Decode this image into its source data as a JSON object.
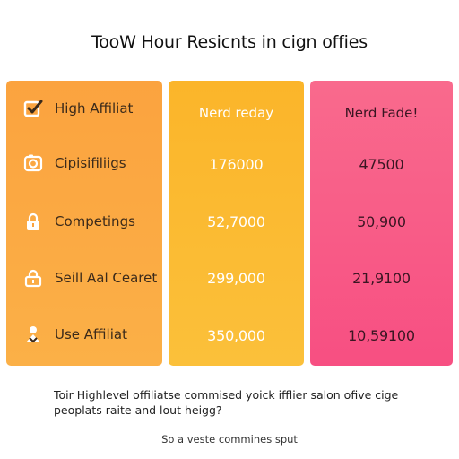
{
  "title": "TooW Hour Resicnts in cign offies",
  "features_panel": {
    "items": [
      {
        "icon": "checkmark-icon",
        "label": "High Affiliat"
      },
      {
        "icon": "camera-icon",
        "label": "Cipisifiliigs"
      },
      {
        "icon": "lock-icon",
        "label": "Competings"
      },
      {
        "icon": "lock-icon",
        "label": "Seill Aal Cearet"
      },
      {
        "icon": "person-icon",
        "label": "Use Affiliat"
      }
    ],
    "color": "#fba33f"
  },
  "ready_column": {
    "header": "Nerd reday",
    "values": [
      "176000",
      "52,7000",
      "299,000",
      "350,000"
    ],
    "color": "#fbb52a"
  },
  "fade_column": {
    "header": "Nerd Fade!",
    "values": [
      "47500",
      "50,900",
      "21,9100",
      "10,59100"
    ],
    "color": "#f96a8d"
  },
  "footnote": {
    "line1": "Toir Highlevel offiliatse commised yoick ifflier salon ofive cige",
    "line2": "peoplats raite and lout heigg?"
  },
  "caption": "So a veste commines sput"
}
